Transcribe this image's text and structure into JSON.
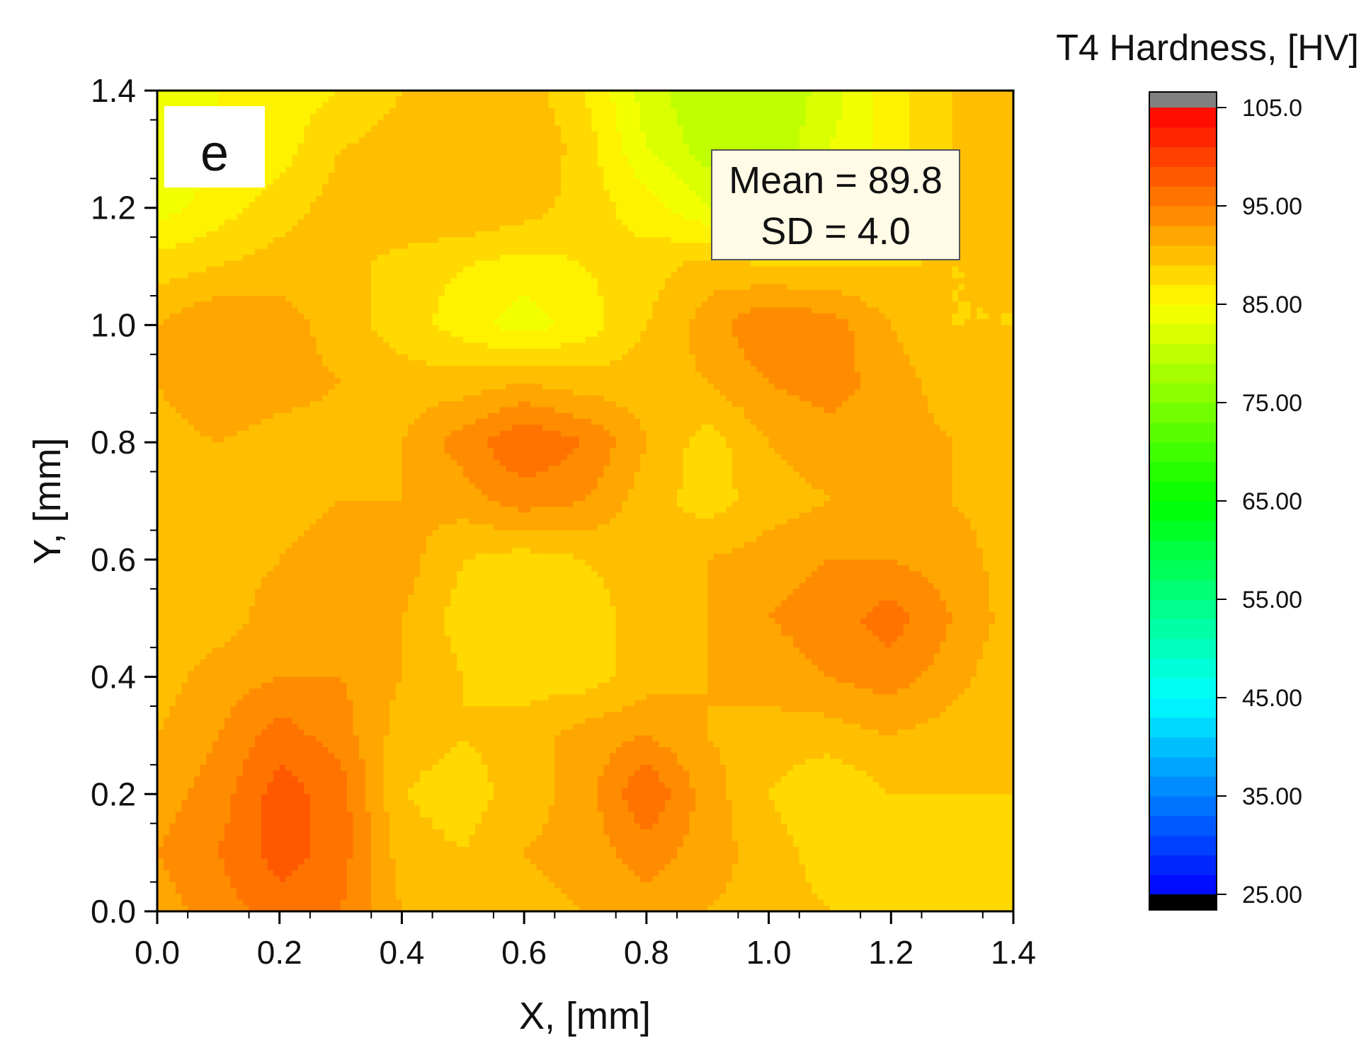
{
  "chart_data": {
    "type": "heatmap",
    "panel_label": "e",
    "xlabel": "X, [mm]",
    "ylabel": "Y, [mm]",
    "xlim": [
      0.0,
      1.4
    ],
    "ylim": [
      0.0,
      1.4
    ],
    "x_ticks": [
      "0.0",
      "0.2",
      "0.4",
      "0.6",
      "0.8",
      "1.0",
      "1.2",
      "1.4"
    ],
    "y_ticks": [
      "0.0",
      "0.2",
      "0.4",
      "0.6",
      "0.8",
      "1.0",
      "1.2",
      "1.4"
    ],
    "x": [
      0.0,
      0.1,
      0.2,
      0.3,
      0.4,
      0.5,
      0.6,
      0.7,
      0.8,
      0.9,
      1.0,
      1.1,
      1.2,
      1.3,
      1.4
    ],
    "y": [
      0.0,
      0.1,
      0.2,
      0.3,
      0.4,
      0.5,
      0.6,
      0.7,
      0.8,
      0.9,
      1.0,
      1.1,
      1.2,
      1.3,
      1.4
    ],
    "z": [
      [
        92,
        94,
        96,
        95,
        91,
        89,
        90,
        91,
        92,
        91,
        90,
        89,
        89,
        88,
        88
      ],
      [
        93,
        95,
        98,
        96,
        90,
        89,
        91,
        92,
        94,
        92,
        90,
        88,
        88,
        88,
        88
      ],
      [
        92,
        94,
        98,
        96,
        89,
        88,
        90,
        92,
        97,
        92,
        89,
        87,
        89,
        89,
        89
      ],
      [
        91,
        93,
        96,
        94,
        90,
        89,
        90,
        92,
        93,
        91,
        90,
        90,
        91,
        90,
        89
      ],
      [
        90,
        92,
        93,
        93,
        91,
        89,
        88,
        88,
        90,
        91,
        92,
        93,
        94,
        92,
        89
      ],
      [
        89,
        90,
        92,
        93,
        91,
        88,
        87,
        88,
        90,
        91,
        93,
        94,
        96,
        93,
        90
      ],
      [
        89,
        90,
        91,
        92,
        92,
        89,
        88,
        89,
        90,
        91,
        92,
        93,
        93,
        92,
        90
      ],
      [
        89,
        90,
        90,
        91,
        91,
        92,
        94,
        93,
        90,
        88,
        90,
        91,
        91,
        91,
        90
      ],
      [
        90,
        91,
        90,
        90,
        91,
        94,
        97,
        95,
        91,
        88,
        91,
        92,
        92,
        91,
        89
      ],
      [
        91,
        93,
        92,
        91,
        90,
        90,
        91,
        90,
        90,
        91,
        93,
        94,
        92,
        90,
        89
      ],
      [
        91,
        93,
        92,
        90,
        88,
        86,
        84,
        86,
        89,
        92,
        95,
        94,
        91,
        89,
        89
      ],
      [
        88,
        89,
        90,
        90,
        88,
        87,
        86,
        87,
        88,
        90,
        89,
        89,
        89,
        89,
        89
      ],
      [
        84,
        86,
        88,
        90,
        91,
        91,
        90,
        88,
        86,
        83,
        82,
        85,
        88,
        90,
        90
      ],
      [
        83,
        85,
        86,
        89,
        90,
        91,
        91,
        88,
        83,
        80,
        79,
        83,
        86,
        89,
        90
      ],
      [
        84,
        85,
        86,
        87,
        89,
        90,
        90,
        87,
        82,
        79,
        79,
        82,
        86,
        89,
        89
      ]
    ],
    "colorbar": {
      "title": "T4 Hardness, [HV]",
      "range": [
        25.0,
        105.0
      ],
      "tick_values": [
        105.0,
        95.0,
        85.0,
        75.0,
        65.0,
        55.0,
        45.0,
        35.0,
        25.0
      ],
      "tick_labels": [
        "105.0",
        "95.00",
        "85.00",
        "75.00",
        "65.00",
        "55.00",
        "45.00",
        "35.00",
        "25.00"
      ],
      "levels": 40,
      "over_color": "#808080",
      "under_color": "#000000",
      "colormap": [
        "#0000ff",
        "#00ffff",
        "#00ff00",
        "#ffff00",
        "#ff0000"
      ]
    },
    "annotation": {
      "lines": [
        "Mean = 89.8",
        "SD = 4.0"
      ],
      "background": "#fffbe6"
    },
    "grid": false,
    "legend": "colorbar right"
  }
}
